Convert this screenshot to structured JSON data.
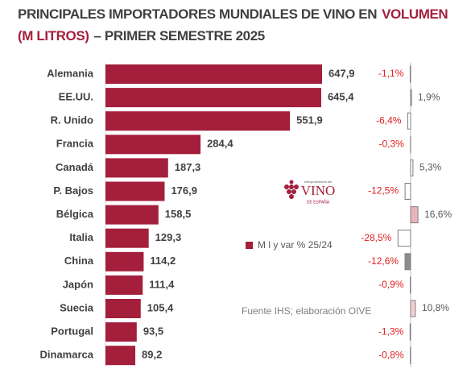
{
  "chart_data": {
    "type": "bar",
    "title": [
      {
        "text": "PRINCIPALES IMPORTADORES MUNDIALES DE VINO EN",
        "color": "#404040"
      },
      {
        "text": "VOLUMEN",
        "color": "#a31f3b"
      },
      {
        "text": "(M LITROS)",
        "color": "#a31f3b"
      },
      {
        "text": "– PRIMER SEMESTRE 2025",
        "color": "#404040"
      }
    ],
    "categories": [
      "Alemania",
      "EE.UU.",
      "R. Unido",
      "Francia",
      "Canadá",
      "P. Bajos",
      "Bélgica",
      "Italia",
      "China",
      "Japón",
      "Suecia",
      "Portugal",
      "Dinamarca"
    ],
    "values": [
      647.9,
      645.4,
      551.9,
      284.4,
      187.3,
      176.9,
      158.5,
      129.3,
      114.2,
      111.4,
      105.4,
      93.5,
      89.2
    ],
    "value_labels": [
      "647,9",
      "645,4",
      "551,9",
      "284,4",
      "187,3",
      "176,9",
      "158,5",
      "129,3",
      "114,2",
      "111,4",
      "105,4",
      "93,5",
      "89,2"
    ],
    "color": "#a31f3b",
    "change": {
      "values": [
        -1.1,
        1.9,
        -6.4,
        -0.3,
        5.3,
        -12.5,
        16.6,
        -28.5,
        -12.6,
        -0.9,
        10.8,
        -1.3,
        -0.8
      ],
      "value_labels": [
        "-1,1%",
        "1,9%",
        "-6,4%",
        "-0,3%",
        "5,3%",
        "-12,5%",
        "16,6%",
        "-28,5%",
        "-12,6%",
        "-0,9%",
        "10,8%",
        "-1,3%",
        "-0,8%"
      ],
      "colors": [
        "#ffffff",
        "#ffffff",
        "#ffffff",
        "#ffffff",
        "#ffffff",
        "#ffffff",
        "#e8b4ba",
        "#ffffff",
        "#8c8c8c",
        "#ffffff",
        "#f4d0d4",
        "#ffffff",
        "#ffffff"
      ],
      "negative_color": "#e02020",
      "positive_color": "#595959"
    },
    "legend": "M l y var % 25/24",
    "source": "Fuente IHS; elaboración OIVE",
    "logo": {
      "top": "Interprofesional del",
      "main": "VINO",
      "sub": "DE ESPAÑA"
    }
  }
}
